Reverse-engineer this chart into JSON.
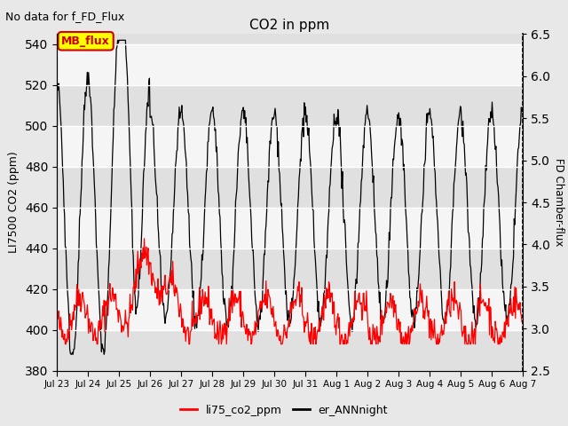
{
  "title": "CO2 in ppm",
  "top_label": "No data for f_FD_Flux",
  "legend_box_label": "MB_flux",
  "ylabel_left": "LI7500 CO2 (ppm)",
  "ylabel_right": "FD Chamber-flux",
  "ylim_left": [
    380,
    545
  ],
  "ylim_right": [
    2.5,
    6.5
  ],
  "yticks_left": [
    380,
    400,
    420,
    440,
    460,
    480,
    500,
    520,
    540
  ],
  "yticks_right": [
    2.5,
    3.0,
    3.5,
    4.0,
    4.5,
    5.0,
    5.5,
    6.0,
    6.5
  ],
  "xtick_labels": [
    "Jul 23",
    "Jul 24",
    "Jul 25",
    "Jul 26",
    "Jul 27",
    "Jul 28",
    "Jul 29",
    "Jul 30",
    "Jul 31",
    "Aug 1",
    "Aug 2",
    "Aug 3",
    "Aug 4",
    "Aug 5",
    "Aug 6",
    "Aug 7"
  ],
  "background_color": "#e8e8e8",
  "plot_bg_bands": [
    "#e0e0e0",
    "#f5f5f5"
  ],
  "line1_color": "#ff0000",
  "line2_color": "#000000",
  "line1_label": "li75_co2_ppm",
  "line2_label": "er_ANNnight",
  "legend_box_color": "#ffff00",
  "legend_box_edge": "#cc0000"
}
